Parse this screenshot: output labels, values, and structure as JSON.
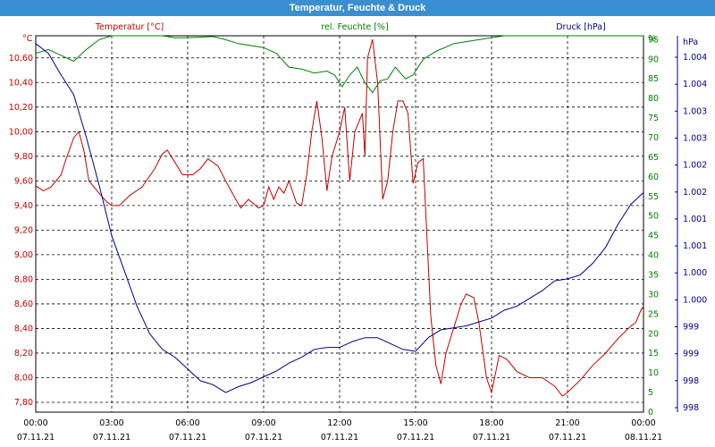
{
  "window": {
    "title": "Temperatur, Feuchte & Druck"
  },
  "colors": {
    "temperature": "#c00000",
    "humidity": "#008000",
    "pressure": "#00008b",
    "grid": "#000000",
    "titlebar": "#3a8fd0"
  },
  "chart_data": {
    "type": "line",
    "title": "Temperatur, Feuchte & Druck",
    "legend": [
      "Temperatur [°C]",
      "rel. Feuchte [%]",
      "Druck [hPa]"
    ],
    "x_ticks": [
      {
        "time": "00:00",
        "date": "07.11.21"
      },
      {
        "time": "03:00",
        "date": "07.11.21"
      },
      {
        "time": "06:00",
        "date": "07.11.21"
      },
      {
        "time": "09:00",
        "date": "07.11.21"
      },
      {
        "time": "12:00",
        "date": "07.11.21"
      },
      {
        "time": "15:00",
        "date": "07.11.21"
      },
      {
        "time": "18:00",
        "date": "07.11.21"
      },
      {
        "time": "21:00",
        "date": "07.11.21"
      },
      {
        "time": "00:00",
        "date": "08.11.21"
      }
    ],
    "x_range_hours": [
      0,
      24
    ],
    "grid": true,
    "axes": {
      "temperature": {
        "unit": "°C",
        "range": [
          7.72,
          10.78
        ],
        "ticks": [
          "10,60",
          "10,40",
          "10,20",
          "10,00",
          "9,80",
          "9,60",
          "9,40",
          "9,20",
          "9,00",
          "8,80",
          "8,60",
          "8,40",
          "8,20",
          "8,00",
          "7,80"
        ],
        "tick_values": [
          10.6,
          10.4,
          10.2,
          10.0,
          9.8,
          9.6,
          9.4,
          9.2,
          9.0,
          8.8,
          8.6,
          8.4,
          8.2,
          8.0,
          7.8
        ]
      },
      "humidity": {
        "unit": "%",
        "range": [
          0,
          96
        ],
        "ticks": [
          "95",
          "90",
          "85",
          "80",
          "75",
          "70",
          "65",
          "60",
          "55",
          "50",
          "45",
          "40",
          "35",
          "30",
          "25",
          "20",
          "15",
          "10",
          "5",
          "0"
        ],
        "tick_values": [
          95,
          90,
          85,
          80,
          75,
          70,
          65,
          60,
          55,
          50,
          45,
          40,
          35,
          30,
          25,
          20,
          15,
          10,
          5,
          0
        ]
      },
      "pressure": {
        "unit": "hPa",
        "ticks": [
          "1.004",
          "1.004",
          "1.003",
          "1.003",
          "1.002",
          "1.002",
          "1.001",
          "1.001",
          "1.000",
          "1.000",
          "999",
          "999",
          "998",
          "998"
        ]
      }
    },
    "series": [
      {
        "name": "Temperatur [°C]",
        "axis": "temperature",
        "points": [
          [
            0,
            9.56
          ],
          [
            0.3,
            9.52
          ],
          [
            0.6,
            9.55
          ],
          [
            1.0,
            9.65
          ],
          [
            1.2,
            9.78
          ],
          [
            1.5,
            9.95
          ],
          [
            1.7,
            10.0
          ],
          [
            1.9,
            9.85
          ],
          [
            2.1,
            9.6
          ],
          [
            2.5,
            9.5
          ],
          [
            2.8,
            9.43
          ],
          [
            3.0,
            9.4
          ],
          [
            3.3,
            9.4
          ],
          [
            3.7,
            9.48
          ],
          [
            4.2,
            9.55
          ],
          [
            4.7,
            9.7
          ],
          [
            5.0,
            9.82
          ],
          [
            5.2,
            9.85
          ],
          [
            5.5,
            9.75
          ],
          [
            5.8,
            9.65
          ],
          [
            6.2,
            9.65
          ],
          [
            6.5,
            9.7
          ],
          [
            6.8,
            9.78
          ],
          [
            7.2,
            9.72
          ],
          [
            7.5,
            9.6
          ],
          [
            7.9,
            9.45
          ],
          [
            8.1,
            9.38
          ],
          [
            8.4,
            9.45
          ],
          [
            8.8,
            9.38
          ],
          [
            9.0,
            9.4
          ],
          [
            9.2,
            9.55
          ],
          [
            9.4,
            9.45
          ],
          [
            9.6,
            9.55
          ],
          [
            9.8,
            9.5
          ],
          [
            10.0,
            9.6
          ],
          [
            10.3,
            9.42
          ],
          [
            10.5,
            9.4
          ],
          [
            10.7,
            9.65
          ],
          [
            10.9,
            10.0
          ],
          [
            11.1,
            10.25
          ],
          [
            11.3,
            9.95
          ],
          [
            11.5,
            9.52
          ],
          [
            11.7,
            9.8
          ],
          [
            12.0,
            10.0
          ],
          [
            12.2,
            10.2
          ],
          [
            12.4,
            9.6
          ],
          [
            12.6,
            10.0
          ],
          [
            12.9,
            10.15
          ],
          [
            13.0,
            9.8
          ],
          [
            13.1,
            10.6
          ],
          [
            13.3,
            10.75
          ],
          [
            13.5,
            10.4
          ],
          [
            13.7,
            9.45
          ],
          [
            13.9,
            9.6
          ],
          [
            14.1,
            10.0
          ],
          [
            14.3,
            10.25
          ],
          [
            14.5,
            10.25
          ],
          [
            14.7,
            10.15
          ],
          [
            14.9,
            9.58
          ],
          [
            15.1,
            9.75
          ],
          [
            15.3,
            9.78
          ],
          [
            15.6,
            8.5
          ],
          [
            15.8,
            8.1
          ],
          [
            16.0,
            7.95
          ],
          [
            16.2,
            8.2
          ],
          [
            16.5,
            8.4
          ],
          [
            16.8,
            8.6
          ],
          [
            17.0,
            8.68
          ],
          [
            17.3,
            8.65
          ],
          [
            17.5,
            8.45
          ],
          [
            17.8,
            8.0
          ],
          [
            18.0,
            7.88
          ],
          [
            18.3,
            8.18
          ],
          [
            18.6,
            8.15
          ],
          [
            19.0,
            8.05
          ],
          [
            19.5,
            8.0
          ],
          [
            20.0,
            8.0
          ],
          [
            20.5,
            7.93
          ],
          [
            20.8,
            7.85
          ],
          [
            21.0,
            7.88
          ],
          [
            21.5,
            7.98
          ],
          [
            22.0,
            8.1
          ],
          [
            22.5,
            8.2
          ],
          [
            23.0,
            8.32
          ],
          [
            23.5,
            8.42
          ],
          [
            23.7,
            8.45
          ],
          [
            23.9,
            8.55
          ],
          [
            24.0,
            8.58
          ]
        ]
      },
      {
        "name": "rel. Feuchte [%]",
        "axis": "humidity",
        "points": [
          [
            0,
            91.5
          ],
          [
            0.5,
            92.5
          ],
          [
            1.0,
            91.0
          ],
          [
            1.5,
            89.5
          ],
          [
            2.0,
            92.5
          ],
          [
            2.5,
            95.0
          ],
          [
            3.0,
            96.0
          ],
          [
            4.0,
            96.0
          ],
          [
            5.0,
            96.0
          ],
          [
            5.5,
            95.5
          ],
          [
            6.0,
            95.5
          ],
          [
            7.0,
            95.8
          ],
          [
            7.5,
            95.0
          ],
          [
            8.0,
            94.0
          ],
          [
            9.0,
            93.0
          ],
          [
            9.5,
            91.5
          ],
          [
            10.0,
            88.0
          ],
          [
            10.5,
            87.5
          ],
          [
            11.0,
            86.5
          ],
          [
            11.5,
            87.0
          ],
          [
            11.8,
            86.0
          ],
          [
            12.1,
            83.0
          ],
          [
            12.4,
            86.0
          ],
          [
            12.7,
            88.0
          ],
          [
            13.0,
            84.0
          ],
          [
            13.3,
            81.5
          ],
          [
            13.6,
            84.5
          ],
          [
            13.9,
            85.0
          ],
          [
            14.2,
            88.0
          ],
          [
            14.6,
            85.0
          ],
          [
            14.9,
            86.0
          ],
          [
            15.3,
            90.0
          ],
          [
            15.8,
            92.0
          ],
          [
            16.5,
            94.0
          ],
          [
            17.5,
            95.0
          ],
          [
            18.5,
            96.0
          ],
          [
            19.5,
            96.0
          ],
          [
            21.0,
            96.0
          ],
          [
            22.0,
            96.0
          ],
          [
            23.0,
            96.0
          ],
          [
            24.0,
            96.0
          ]
        ]
      },
      {
        "name": "Druck [hPa]",
        "axis": "pressure",
        "points": [
          [
            0,
            94.0
          ],
          [
            0.5,
            91.5
          ],
          [
            1.0,
            86.0
          ],
          [
            1.5,
            81.0
          ],
          [
            2.0,
            70.0
          ],
          [
            2.5,
            58.0
          ],
          [
            3.0,
            45.0
          ],
          [
            3.5,
            36.0
          ],
          [
            4.0,
            27.0
          ],
          [
            4.5,
            20.0
          ],
          [
            5.0,
            16.0
          ],
          [
            5.5,
            14.0
          ],
          [
            6.0,
            11.0
          ],
          [
            6.5,
            8.0
          ],
          [
            7.0,
            7.0
          ],
          [
            7.5,
            5.0
          ],
          [
            8.0,
            6.5
          ],
          [
            8.5,
            7.5
          ],
          [
            9.0,
            9.0
          ],
          [
            9.5,
            10.5
          ],
          [
            10.0,
            12.5
          ],
          [
            10.5,
            14.0
          ],
          [
            11.0,
            16.0
          ],
          [
            11.5,
            16.5
          ],
          [
            12.0,
            16.5
          ],
          [
            12.5,
            18.0
          ],
          [
            13.0,
            19.0
          ],
          [
            13.5,
            19.0
          ],
          [
            14.0,
            17.5
          ],
          [
            14.5,
            16.0
          ],
          [
            15.0,
            15.5
          ],
          [
            15.5,
            19.0
          ],
          [
            16.0,
            21.0
          ],
          [
            16.5,
            21.5
          ],
          [
            17.0,
            22.0
          ],
          [
            17.5,
            23.0
          ],
          [
            18.0,
            24.0
          ],
          [
            18.5,
            26.0
          ],
          [
            19.0,
            27.0
          ],
          [
            19.5,
            29.0
          ],
          [
            20.0,
            31.0
          ],
          [
            20.5,
            33.5
          ],
          [
            21.0,
            34.0
          ],
          [
            21.5,
            35.0
          ],
          [
            22.0,
            38.0
          ],
          [
            22.5,
            42.0
          ],
          [
            23.0,
            48.0
          ],
          [
            23.5,
            53.0
          ],
          [
            24.0,
            56.0
          ]
        ]
      }
    ]
  }
}
